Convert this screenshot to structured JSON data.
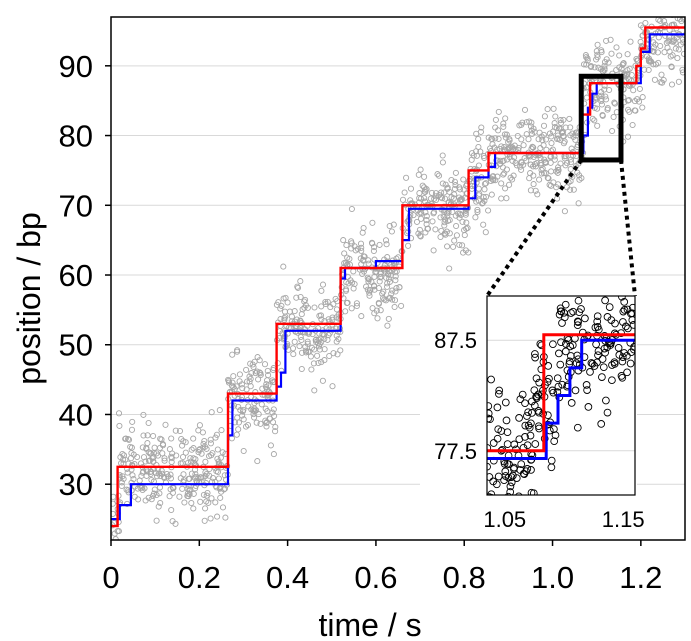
{
  "chart_data": [
    {
      "type": "scatter",
      "panel": "main",
      "xlabel": "time / s",
      "ylabel": "position / bp",
      "xlim": [
        0,
        1.3
      ],
      "ylim": [
        22,
        97
      ],
      "x_ticks": [
        0,
        0.2,
        0.4,
        0.6,
        0.8,
        1.0,
        1.2
      ],
      "x_tick_labels": [
        "0",
        "0.2",
        "0.4",
        "0.6",
        "0.8",
        "1.0",
        "1.2"
      ],
      "y_ticks": [
        30,
        40,
        50,
        60,
        70,
        80,
        90
      ],
      "y_tick_labels": [
        "30",
        "40",
        "50",
        "60",
        "70",
        "80",
        "90"
      ],
      "grid": "horizontal",
      "series": [
        {
          "style": "scatter",
          "marker": "open-circle",
          "color": "#a6a6a6",
          "density_points": 1500,
          "noise_sd": 3,
          "levels": [
            {
              "x0": 0.0,
              "x1": 0.018,
              "y": 24.5
            },
            {
              "x0": 0.018,
              "x1": 0.265,
              "y": 32
            },
            {
              "x0": 0.265,
              "x1": 0.375,
              "y": 42
            },
            {
              "x0": 0.375,
              "x1": 0.52,
              "y": 52
            },
            {
              "x0": 0.52,
              "x1": 0.66,
              "y": 60
            },
            {
              "x0": 0.66,
              "x1": 0.81,
              "y": 69.5
            },
            {
              "x0": 0.81,
              "x1": 0.855,
              "y": 74
            },
            {
              "x0": 0.855,
              "x1": 1.07,
              "y": 77
            },
            {
              "x0": 1.07,
              "x1": 1.2,
              "y": 87
            },
            {
              "x0": 1.2,
              "x1": 1.3,
              "y": 94
            }
          ]
        },
        {
          "style": "step",
          "color": "#0000ff",
          "x": [
            0,
            0.02,
            0.02,
            0.045,
            0.045,
            0.265,
            0.265,
            0.275,
            0.275,
            0.375,
            0.375,
            0.385,
            0.385,
            0.395,
            0.395,
            0.52,
            0.52,
            0.53,
            0.53,
            0.6,
            0.6,
            0.66,
            0.66,
            0.675,
            0.675,
            0.81,
            0.81,
            0.825,
            0.825,
            0.855,
            0.855,
            0.87,
            0.87,
            1.07,
            1.07,
            1.08,
            1.08,
            1.09,
            1.09,
            1.1,
            1.1,
            1.2,
            1.2,
            1.22,
            1.22,
            1.3
          ],
          "y": [
            25,
            25,
            27,
            27,
            30,
            30,
            37,
            37,
            42,
            42,
            44,
            44,
            46,
            46,
            52,
            52,
            59.5,
            59.5,
            61,
            61,
            62,
            62,
            65,
            65,
            69.5,
            69.5,
            71,
            71,
            74,
            74,
            75.5,
            75.5,
            77.5,
            77.5,
            80,
            80,
            84,
            84,
            86,
            86,
            87.5,
            87.5,
            92,
            92,
            94.5,
            94.5
          ]
        },
        {
          "style": "step",
          "color": "#ff0000",
          "x": [
            0,
            0.015,
            0.015,
            0.265,
            0.265,
            0.375,
            0.375,
            0.52,
            0.52,
            0.66,
            0.66,
            0.81,
            0.81,
            0.855,
            0.855,
            1.065,
            1.065,
            1.085,
            1.085,
            1.19,
            1.19,
            1.2,
            1.2,
            1.21,
            1.21,
            1.3
          ],
          "y": [
            24,
            24,
            32.5,
            32.5,
            43,
            43,
            53,
            53,
            61,
            61,
            70,
            70,
            75,
            75,
            77.5,
            77.5,
            83,
            83,
            87.5,
            87.5,
            90,
            90,
            92.5,
            92.5,
            95.5,
            95.5
          ]
        }
      ],
      "zoom_box": {
        "x": [
          1.065,
          1.155
        ],
        "y": [
          76.5,
          88.5
        ],
        "color": "#000000"
      }
    },
    {
      "type": "scatter",
      "panel": "inset",
      "xlim": [
        1.035,
        1.16
      ],
      "ylim": [
        73.5,
        91.5
      ],
      "x_ticks": [
        1.05,
        1.15
      ],
      "x_tick_labels": [
        "1.05",
        "1.15"
      ],
      "y_ticks": [
        77.5,
        87.5
      ],
      "y_tick_labels": [
        "77.5",
        "87.5"
      ],
      "grid": "horizontal",
      "series": [
        {
          "style": "scatter",
          "marker": "open-circle",
          "color": "#000000",
          "density_points": 260,
          "noise_sd": 3,
          "levels": [
            {
              "x0": 1.035,
              "x1": 1.075,
              "y": 77
            },
            {
              "x0": 1.075,
              "x1": 1.095,
              "y": 83
            },
            {
              "x0": 1.095,
              "x1": 1.16,
              "y": 87
            }
          ]
        },
        {
          "style": "step",
          "color": "#0000ff",
          "x": [
            1.035,
            1.085,
            1.085,
            1.095,
            1.095,
            1.105,
            1.105,
            1.115,
            1.115,
            1.16
          ],
          "y": [
            76.8,
            76.8,
            80,
            80,
            82.5,
            82.5,
            85,
            85,
            87.5,
            87.5
          ]
        },
        {
          "style": "step",
          "color": "#ff0000",
          "x": [
            1.035,
            1.083,
            1.083,
            1.16
          ],
          "y": [
            77.5,
            77.5,
            88,
            88
          ]
        }
      ]
    }
  ]
}
